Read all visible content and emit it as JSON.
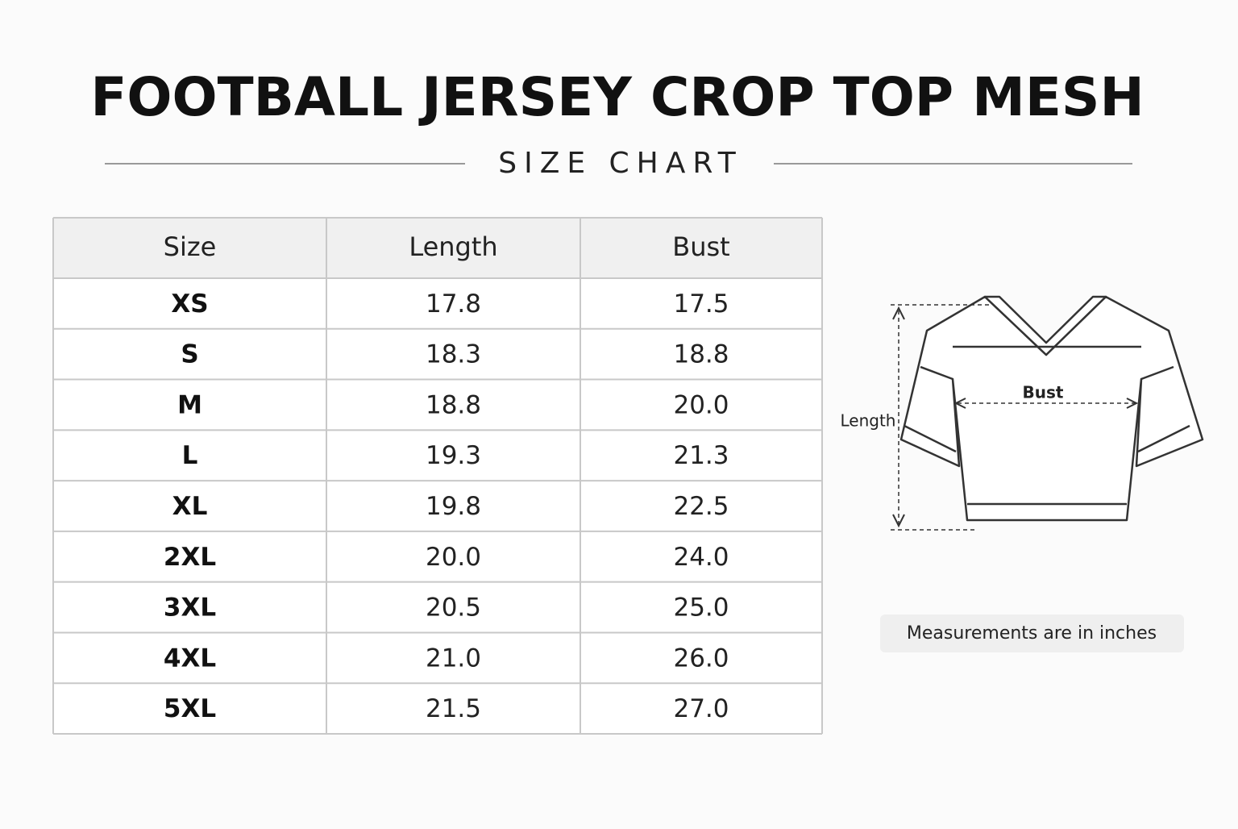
{
  "header": {
    "title": "FOOTBALL JERSEY CROP TOP MESH",
    "subtitle": "SIZE CHART"
  },
  "table": {
    "columns": [
      "Size",
      "Length",
      "Bust"
    ],
    "rows": [
      [
        "XS",
        "17.8",
        "17.5"
      ],
      [
        "S",
        "18.3",
        "18.8"
      ],
      [
        "M",
        "18.8",
        "20.0"
      ],
      [
        "L",
        "19.3",
        "21.3"
      ],
      [
        "XL",
        "19.8",
        "22.5"
      ],
      [
        "2XL",
        "20.0",
        "24.0"
      ],
      [
        "3XL",
        "20.5",
        "25.0"
      ],
      [
        "4XL",
        "21.0",
        "26.0"
      ],
      [
        "5XL",
        "21.5",
        "27.0"
      ]
    ]
  },
  "diagram": {
    "length_label": "Length",
    "bust_label": "Bust"
  },
  "note": "Measurements are in inches"
}
